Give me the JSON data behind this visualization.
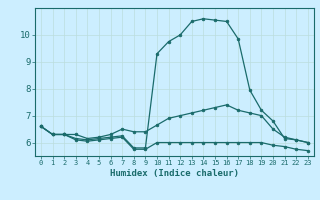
{
  "xlabel": "Humidex (Indice chaleur)",
  "bg_color": "#cceeff",
  "grid_color": "#bbdddd",
  "line_color": "#1a6b6b",
  "xlim": [
    -0.5,
    23.5
  ],
  "ylim": [
    5.5,
    11.0
  ],
  "yticks": [
    6,
    7,
    8,
    9,
    10
  ],
  "xticks": [
    0,
    1,
    2,
    3,
    4,
    5,
    6,
    7,
    8,
    9,
    10,
    11,
    12,
    13,
    14,
    15,
    16,
    17,
    18,
    19,
    20,
    21,
    22,
    23
  ],
  "series1_x": [
    0,
    1,
    2,
    3,
    4,
    5,
    6,
    7,
    8,
    9,
    10,
    11,
    12,
    13,
    14,
    15,
    16,
    17,
    18,
    19,
    20,
    21,
    22,
    23
  ],
  "series1_y": [
    6.6,
    6.3,
    6.3,
    6.3,
    6.15,
    6.2,
    6.3,
    6.5,
    6.4,
    6.4,
    6.65,
    6.9,
    7.0,
    7.1,
    7.2,
    7.3,
    7.4,
    7.2,
    7.1,
    7.0,
    6.5,
    6.2,
    6.1,
    6.0
  ],
  "series2_x": [
    0,
    1,
    2,
    3,
    4,
    5,
    6,
    7,
    8,
    9,
    10,
    11,
    12,
    13,
    14,
    15,
    16,
    17,
    18,
    19,
    20,
    21,
    22,
    23
  ],
  "series2_y": [
    6.6,
    6.3,
    6.3,
    6.15,
    6.1,
    6.15,
    6.2,
    6.25,
    5.8,
    5.8,
    9.3,
    9.75,
    10.0,
    10.5,
    10.6,
    10.55,
    10.5,
    9.85,
    7.95,
    7.2,
    6.8,
    6.15,
    6.1,
    6.0
  ],
  "series3_x": [
    0,
    1,
    2,
    3,
    4,
    5,
    6,
    7,
    8,
    9,
    10,
    11,
    12,
    13,
    14,
    15,
    16,
    17,
    18,
    19,
    20,
    21,
    22,
    23
  ],
  "series3_y": [
    6.6,
    6.3,
    6.3,
    6.1,
    6.05,
    6.1,
    6.15,
    6.2,
    5.75,
    5.75,
    6.0,
    6.0,
    6.0,
    6.0,
    6.0,
    6.0,
    6.0,
    6.0,
    6.0,
    6.0,
    5.9,
    5.85,
    5.75,
    5.7
  ]
}
